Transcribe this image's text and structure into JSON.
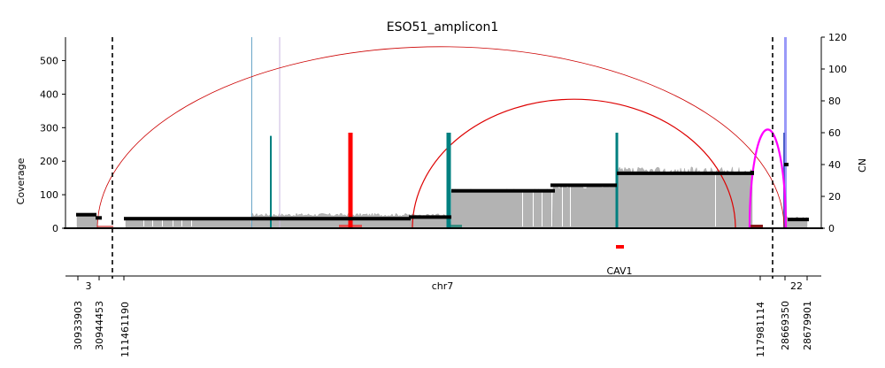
{
  "chart_data": {
    "type": "area",
    "title": "ESO51_amplicon1",
    "ylabel_left": "Coverage",
    "ylabel_right": "CN",
    "ylim_left": [
      0,
      570
    ],
    "ylim_right": [
      0,
      120
    ],
    "yticks_left": [
      "0",
      "100",
      "200",
      "300",
      "400",
      "500"
    ],
    "yticks_right": [
      "0",
      "20",
      "40",
      "60",
      "80",
      "100",
      "120"
    ],
    "segments": [
      {
        "chrom_label": "3",
        "start_label": "30933903",
        "end_label": "30944453"
      },
      {
        "chrom_label": "chr7",
        "start_label": "111461190",
        "end_label": "117981114"
      },
      {
        "chrom_label": "22",
        "start_label": "28669350",
        "end_label": "28679901"
      }
    ],
    "gene_annotations": [
      {
        "name": "CAV1"
      }
    ],
    "copy_number_segments": [
      {
        "segment": "3",
        "cn": 8.5
      },
      {
        "segment": "3",
        "cn": 6.5
      },
      {
        "segment": "chr7",
        "cn": 6
      },
      {
        "segment": "chr7",
        "cn": 7
      },
      {
        "segment": "chr7",
        "cn": 23.5
      },
      {
        "segment": "chr7",
        "cn": 27
      },
      {
        "segment": "chr7",
        "cn": 34.5
      },
      {
        "segment": "chr7",
        "cn": 35
      },
      {
        "segment": "22",
        "cn": 40
      },
      {
        "segment": "22",
        "cn": 5.5
      }
    ],
    "breakpoint_markers": [
      {
        "color": "#ff0000",
        "cn": 60
      },
      {
        "color": "#008080",
        "cn": 60
      },
      {
        "color": "#008080",
        "cn": 60
      },
      {
        "color": "#008080",
        "cn": 58
      }
    ],
    "structural_variants": [
      {
        "color": "#cc0000",
        "peak_cn": 114
      },
      {
        "color": "#dd0000",
        "peak_cn": 81
      },
      {
        "color": "#ff00ff",
        "peak_cn": 62
      }
    ],
    "grid": false,
    "legend": "none"
  }
}
